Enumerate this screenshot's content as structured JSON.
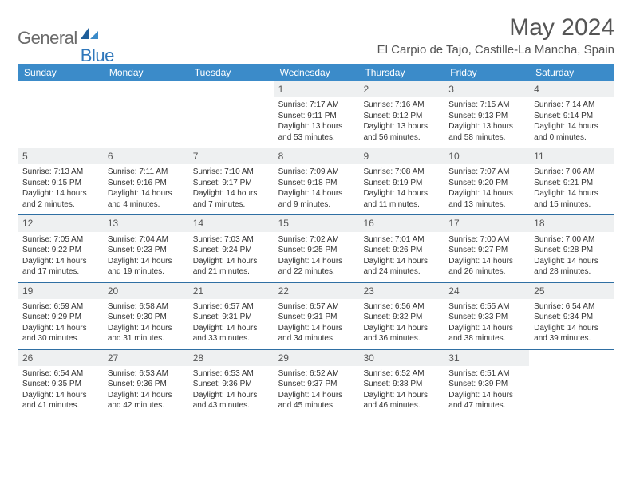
{
  "brand": {
    "general": "General",
    "blue": "Blue"
  },
  "title": "May 2024",
  "location": "El Carpio de Tajo, Castille-La Mancha, Spain",
  "colors": {
    "header_bg": "#3b8bc9",
    "header_text": "#ffffff",
    "divider": "#2f6fa3",
    "daynum_bg": "#eef0f1",
    "text": "#333333",
    "brand_gray": "#6a6a6a",
    "brand_blue": "#2f77bb"
  },
  "day_names": [
    "Sunday",
    "Monday",
    "Tuesday",
    "Wednesday",
    "Thursday",
    "Friday",
    "Saturday"
  ],
  "weeks": [
    [
      null,
      null,
      null,
      {
        "n": "1",
        "sr": "Sunrise: 7:17 AM",
        "ss": "Sunset: 9:11 PM",
        "d1": "Daylight: 13 hours",
        "d2": "and 53 minutes."
      },
      {
        "n": "2",
        "sr": "Sunrise: 7:16 AM",
        "ss": "Sunset: 9:12 PM",
        "d1": "Daylight: 13 hours",
        "d2": "and 56 minutes."
      },
      {
        "n": "3",
        "sr": "Sunrise: 7:15 AM",
        "ss": "Sunset: 9:13 PM",
        "d1": "Daylight: 13 hours",
        "d2": "and 58 minutes."
      },
      {
        "n": "4",
        "sr": "Sunrise: 7:14 AM",
        "ss": "Sunset: 9:14 PM",
        "d1": "Daylight: 14 hours",
        "d2": "and 0 minutes."
      }
    ],
    [
      {
        "n": "5",
        "sr": "Sunrise: 7:13 AM",
        "ss": "Sunset: 9:15 PM",
        "d1": "Daylight: 14 hours",
        "d2": "and 2 minutes."
      },
      {
        "n": "6",
        "sr": "Sunrise: 7:11 AM",
        "ss": "Sunset: 9:16 PM",
        "d1": "Daylight: 14 hours",
        "d2": "and 4 minutes."
      },
      {
        "n": "7",
        "sr": "Sunrise: 7:10 AM",
        "ss": "Sunset: 9:17 PM",
        "d1": "Daylight: 14 hours",
        "d2": "and 7 minutes."
      },
      {
        "n": "8",
        "sr": "Sunrise: 7:09 AM",
        "ss": "Sunset: 9:18 PM",
        "d1": "Daylight: 14 hours",
        "d2": "and 9 minutes."
      },
      {
        "n": "9",
        "sr": "Sunrise: 7:08 AM",
        "ss": "Sunset: 9:19 PM",
        "d1": "Daylight: 14 hours",
        "d2": "and 11 minutes."
      },
      {
        "n": "10",
        "sr": "Sunrise: 7:07 AM",
        "ss": "Sunset: 9:20 PM",
        "d1": "Daylight: 14 hours",
        "d2": "and 13 minutes."
      },
      {
        "n": "11",
        "sr": "Sunrise: 7:06 AM",
        "ss": "Sunset: 9:21 PM",
        "d1": "Daylight: 14 hours",
        "d2": "and 15 minutes."
      }
    ],
    [
      {
        "n": "12",
        "sr": "Sunrise: 7:05 AM",
        "ss": "Sunset: 9:22 PM",
        "d1": "Daylight: 14 hours",
        "d2": "and 17 minutes."
      },
      {
        "n": "13",
        "sr": "Sunrise: 7:04 AM",
        "ss": "Sunset: 9:23 PM",
        "d1": "Daylight: 14 hours",
        "d2": "and 19 minutes."
      },
      {
        "n": "14",
        "sr": "Sunrise: 7:03 AM",
        "ss": "Sunset: 9:24 PM",
        "d1": "Daylight: 14 hours",
        "d2": "and 21 minutes."
      },
      {
        "n": "15",
        "sr": "Sunrise: 7:02 AM",
        "ss": "Sunset: 9:25 PM",
        "d1": "Daylight: 14 hours",
        "d2": "and 22 minutes."
      },
      {
        "n": "16",
        "sr": "Sunrise: 7:01 AM",
        "ss": "Sunset: 9:26 PM",
        "d1": "Daylight: 14 hours",
        "d2": "and 24 minutes."
      },
      {
        "n": "17",
        "sr": "Sunrise: 7:00 AM",
        "ss": "Sunset: 9:27 PM",
        "d1": "Daylight: 14 hours",
        "d2": "and 26 minutes."
      },
      {
        "n": "18",
        "sr": "Sunrise: 7:00 AM",
        "ss": "Sunset: 9:28 PM",
        "d1": "Daylight: 14 hours",
        "d2": "and 28 minutes."
      }
    ],
    [
      {
        "n": "19",
        "sr": "Sunrise: 6:59 AM",
        "ss": "Sunset: 9:29 PM",
        "d1": "Daylight: 14 hours",
        "d2": "and 30 minutes."
      },
      {
        "n": "20",
        "sr": "Sunrise: 6:58 AM",
        "ss": "Sunset: 9:30 PM",
        "d1": "Daylight: 14 hours",
        "d2": "and 31 minutes."
      },
      {
        "n": "21",
        "sr": "Sunrise: 6:57 AM",
        "ss": "Sunset: 9:31 PM",
        "d1": "Daylight: 14 hours",
        "d2": "and 33 minutes."
      },
      {
        "n": "22",
        "sr": "Sunrise: 6:57 AM",
        "ss": "Sunset: 9:31 PM",
        "d1": "Daylight: 14 hours",
        "d2": "and 34 minutes."
      },
      {
        "n": "23",
        "sr": "Sunrise: 6:56 AM",
        "ss": "Sunset: 9:32 PM",
        "d1": "Daylight: 14 hours",
        "d2": "and 36 minutes."
      },
      {
        "n": "24",
        "sr": "Sunrise: 6:55 AM",
        "ss": "Sunset: 9:33 PM",
        "d1": "Daylight: 14 hours",
        "d2": "and 38 minutes."
      },
      {
        "n": "25",
        "sr": "Sunrise: 6:54 AM",
        "ss": "Sunset: 9:34 PM",
        "d1": "Daylight: 14 hours",
        "d2": "and 39 minutes."
      }
    ],
    [
      {
        "n": "26",
        "sr": "Sunrise: 6:54 AM",
        "ss": "Sunset: 9:35 PM",
        "d1": "Daylight: 14 hours",
        "d2": "and 41 minutes."
      },
      {
        "n": "27",
        "sr": "Sunrise: 6:53 AM",
        "ss": "Sunset: 9:36 PM",
        "d1": "Daylight: 14 hours",
        "d2": "and 42 minutes."
      },
      {
        "n": "28",
        "sr": "Sunrise: 6:53 AM",
        "ss": "Sunset: 9:36 PM",
        "d1": "Daylight: 14 hours",
        "d2": "and 43 minutes."
      },
      {
        "n": "29",
        "sr": "Sunrise: 6:52 AM",
        "ss": "Sunset: 9:37 PM",
        "d1": "Daylight: 14 hours",
        "d2": "and 45 minutes."
      },
      {
        "n": "30",
        "sr": "Sunrise: 6:52 AM",
        "ss": "Sunset: 9:38 PM",
        "d1": "Daylight: 14 hours",
        "d2": "and 46 minutes."
      },
      {
        "n": "31",
        "sr": "Sunrise: 6:51 AM",
        "ss": "Sunset: 9:39 PM",
        "d1": "Daylight: 14 hours",
        "d2": "and 47 minutes."
      },
      null
    ]
  ]
}
